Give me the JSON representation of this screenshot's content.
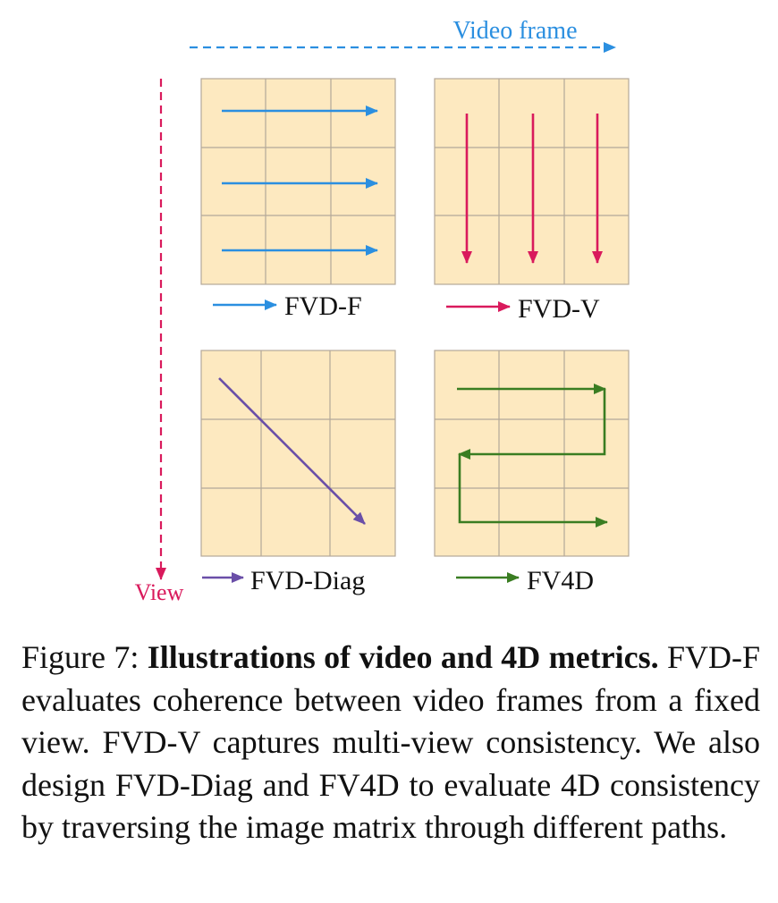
{
  "figure": {
    "axis_horizontal_label": "Video frame",
    "axis_vertical_label": "View",
    "panels": [
      {
        "key": "fvd_f",
        "legend": "FVD-F"
      },
      {
        "key": "fvd_v",
        "legend": "FVD-V"
      },
      {
        "key": "fvd_diag",
        "legend": "FVD-Diag"
      },
      {
        "key": "fv4d",
        "legend": "FV4D"
      }
    ],
    "colors": {
      "cell_fill": "#fde9c0",
      "cell_grid": "#b3a899",
      "fvd_f": "#2b8fe0",
      "fvd_v": "#d91a5c",
      "fvd_diag": "#6a4fa8",
      "fv4d": "#3a7d22",
      "horizontal_axis": "#2b8fe0",
      "vertical_axis": "#d91a5c"
    }
  },
  "caption": {
    "prefix": "Figure 7: ",
    "title": "Illustrations of video and 4D metrics.",
    "body": " FVD-F evaluates coherence between video frames from a fixed view. FVD-V captures multi-view consistency. We also design FVD-Diag and FV4D to evaluate 4D consistency by traversing the image matrix through different paths."
  }
}
